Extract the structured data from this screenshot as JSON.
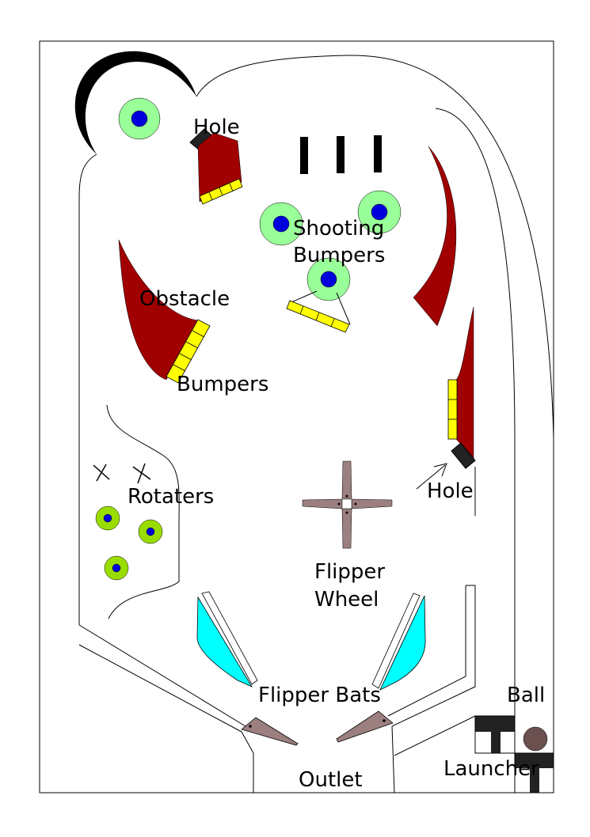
{
  "labels": {
    "hole_top": "Hole",
    "shooting_bumpers_1": "Shooting",
    "shooting_bumpers_2": "Bumpers",
    "obstacle": "Obstacle",
    "bumpers": "Bumpers",
    "rotaters": "Rotaters",
    "hole_right": "Hole",
    "flipper_wheel_1": "Flipper",
    "flipper_wheel_2": "Wheel",
    "flipper_bats": "Flipper Bats",
    "ball": "Ball",
    "launcher": "Launcher",
    "outlet": "Outlet"
  },
  "colors": {
    "obstacle": "#a00000",
    "bumper_strip": "#ffff00",
    "shooting_bumper_ring": "#99ff99",
    "shooting_bumper_core": "#0000dd",
    "rotater_ring": "#99dd00",
    "flipper_bat": "#00ffff",
    "flipper": "#9c7f7f",
    "ball": "#6b5050",
    "dark": "#222222"
  },
  "icons": {
    "rotater_marks": "cross-icon"
  }
}
